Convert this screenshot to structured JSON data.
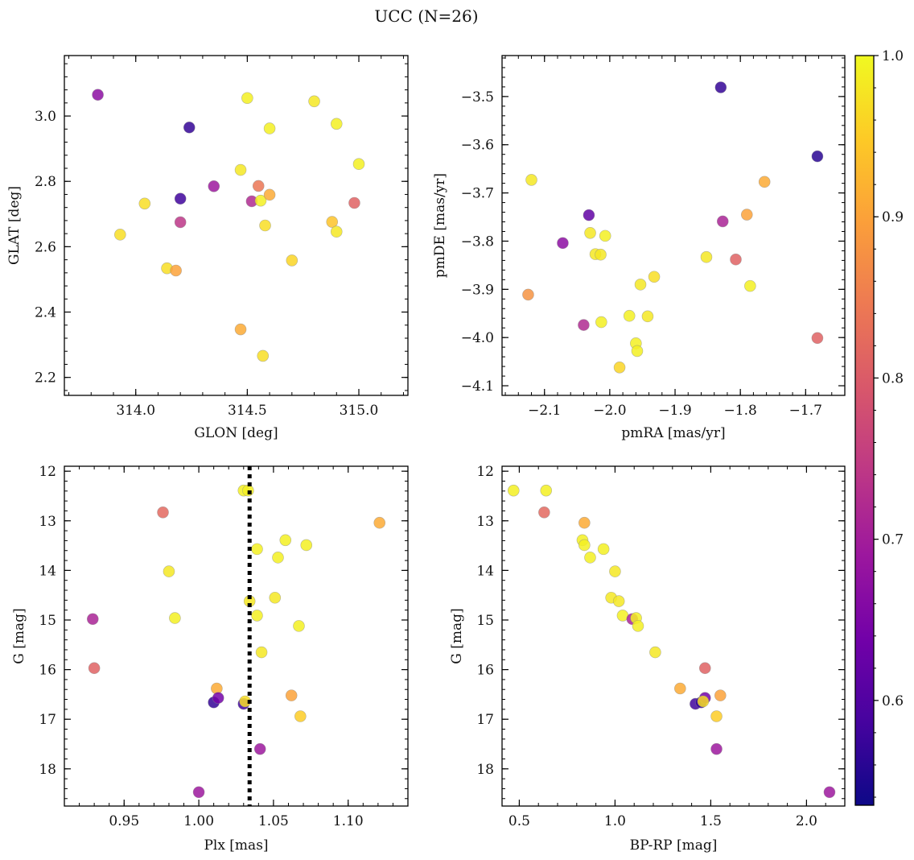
{
  "figure": {
    "title": "UCC (N=26)"
  },
  "chart_data": [
    {
      "type": "scatter",
      "xlabel": "GLON [deg]",
      "ylabel": "GLAT [deg]",
      "xlim": [
        313.68,
        315.22
      ],
      "ylim": [
        2.145,
        3.185
      ],
      "xticks": [
        {
          "value": 314.0,
          "label": "314.0"
        },
        {
          "value": 314.5,
          "label": "314.5"
        },
        {
          "value": 315.0,
          "label": "315.0"
        }
      ],
      "yticks": [
        {
          "value": 2.2,
          "label": "2.2"
        },
        {
          "value": 2.4,
          "label": "2.4"
        },
        {
          "value": 2.6,
          "label": "2.6"
        },
        {
          "value": 2.8,
          "label": "2.8"
        },
        {
          "value": 3.0,
          "label": "3.0"
        }
      ],
      "invert_y": false,
      "points": [
        {
          "x": 313.83,
          "y": 3.065,
          "p": 0.67
        },
        {
          "x": 313.93,
          "y": 2.637,
          "p": 0.97
        },
        {
          "x": 314.04,
          "y": 2.732,
          "p": 0.97
        },
        {
          "x": 314.14,
          "y": 2.534,
          "p": 0.97
        },
        {
          "x": 314.18,
          "y": 2.527,
          "p": 0.9
        },
        {
          "x": 314.2,
          "y": 2.747,
          "p": 0.58
        },
        {
          "x": 314.2,
          "y": 2.675,
          "p": 0.74
        },
        {
          "x": 314.24,
          "y": 2.965,
          "p": 0.57
        },
        {
          "x": 314.35,
          "y": 2.785,
          "p": 0.69
        },
        {
          "x": 314.47,
          "y": 2.835,
          "p": 0.98
        },
        {
          "x": 314.47,
          "y": 2.347,
          "p": 0.91
        },
        {
          "x": 314.5,
          "y": 3.055,
          "p": 0.99
        },
        {
          "x": 314.52,
          "y": 2.739,
          "p": 0.72
        },
        {
          "x": 314.55,
          "y": 2.786,
          "p": 0.84
        },
        {
          "x": 314.56,
          "y": 2.741,
          "p": 0.99
        },
        {
          "x": 314.57,
          "y": 2.266,
          "p": 0.97
        },
        {
          "x": 314.58,
          "y": 2.665,
          "p": 0.97
        },
        {
          "x": 314.6,
          "y": 2.759,
          "p": 0.91
        },
        {
          "x": 314.6,
          "y": 2.962,
          "p": 0.99
        },
        {
          "x": 314.7,
          "y": 2.558,
          "p": 0.96
        },
        {
          "x": 314.8,
          "y": 3.045,
          "p": 0.98
        },
        {
          "x": 314.88,
          "y": 2.676,
          "p": 0.94
        },
        {
          "x": 314.9,
          "y": 2.976,
          "p": 0.99
        },
        {
          "x": 314.9,
          "y": 2.646,
          "p": 0.98
        },
        {
          "x": 314.98,
          "y": 2.734,
          "p": 0.81
        },
        {
          "x": 315.0,
          "y": 2.853,
          "p": 0.99
        }
      ]
    },
    {
      "type": "scatter",
      "xlabel": "pmRA [mas/yr]",
      "ylabel": "pmDE [mas/yr]",
      "xlim": [
        -2.165,
        -1.64
      ],
      "ylim": [
        -4.12,
        -3.415
      ],
      "xticks": [
        {
          "value": -2.1,
          "label": "−2.1"
        },
        {
          "value": -2.0,
          "label": "−2.0"
        },
        {
          "value": -1.9,
          "label": "−1.9"
        },
        {
          "value": -1.8,
          "label": "−1.8"
        },
        {
          "value": -1.7,
          "label": "−1.7"
        }
      ],
      "yticks": [
        {
          "value": -4.1,
          "label": "−4.1"
        },
        {
          "value": -4.0,
          "label": "−4.0"
        },
        {
          "value": -3.9,
          "label": "−3.9"
        },
        {
          "value": -3.8,
          "label": "−3.8"
        },
        {
          "value": -3.7,
          "label": "−3.7"
        },
        {
          "value": -3.6,
          "label": "−3.6"
        },
        {
          "value": -3.5,
          "label": "−3.5"
        }
      ],
      "invert_y": false,
      "points": [
        {
          "x": -2.125,
          "y": -3.911,
          "p": 0.88
        },
        {
          "x": -2.12,
          "y": -3.673,
          "p": 0.98
        },
        {
          "x": -2.072,
          "y": -3.804,
          "p": 0.67
        },
        {
          "x": -2.04,
          "y": -3.974,
          "p": 0.72
        },
        {
          "x": -2.032,
          "y": -3.746,
          "p": 0.62
        },
        {
          "x": -2.03,
          "y": -3.783,
          "p": 0.98
        },
        {
          "x": -2.022,
          "y": -3.827,
          "p": 0.98
        },
        {
          "x": -2.014,
          "y": -3.828,
          "p": 0.98
        },
        {
          "x": -2.013,
          "y": -3.968,
          "p": 0.99
        },
        {
          "x": -2.007,
          "y": -3.789,
          "p": 0.99
        },
        {
          "x": -1.985,
          "y": -4.062,
          "p": 0.96
        },
        {
          "x": -1.97,
          "y": -3.955,
          "p": 0.99
        },
        {
          "x": -1.96,
          "y": -4.012,
          "p": 0.99
        },
        {
          "x": -1.958,
          "y": -4.028,
          "p": 0.99
        },
        {
          "x": -1.953,
          "y": -3.89,
          "p": 0.98
        },
        {
          "x": -1.942,
          "y": -3.956,
          "p": 0.98
        },
        {
          "x": -1.932,
          "y": -3.874,
          "p": 0.97
        },
        {
          "x": -1.852,
          "y": -3.833,
          "p": 0.98
        },
        {
          "x": -1.83,
          "y": -3.481,
          "p": 0.57
        },
        {
          "x": -1.827,
          "y": -3.759,
          "p": 0.71
        },
        {
          "x": -1.807,
          "y": -3.838,
          "p": 0.81
        },
        {
          "x": -1.79,
          "y": -3.745,
          "p": 0.9
        },
        {
          "x": -1.785,
          "y": -3.893,
          "p": 0.99
        },
        {
          "x": -1.763,
          "y": -3.677,
          "p": 0.91
        },
        {
          "x": -1.682,
          "y": -3.624,
          "p": 0.56
        },
        {
          "x": -1.682,
          "y": -4.001,
          "p": 0.81
        }
      ]
    },
    {
      "type": "scatter",
      "xlabel": "Plx [mas]",
      "ylabel": "G [mag]",
      "xlim": [
        0.91,
        1.14
      ],
      "ylim": [
        11.9,
        18.75
      ],
      "xticks": [
        {
          "value": 0.95,
          "label": "0.95"
        },
        {
          "value": 1.0,
          "label": "1.00"
        },
        {
          "value": 1.05,
          "label": "1.05"
        },
        {
          "value": 1.1,
          "label": "1.10"
        }
      ],
      "yticks": [
        {
          "value": 12,
          "label": "12"
        },
        {
          "value": 13,
          "label": "13"
        },
        {
          "value": 14,
          "label": "14"
        },
        {
          "value": 15,
          "label": "15"
        },
        {
          "value": 16,
          "label": "16"
        },
        {
          "value": 17,
          "label": "17"
        },
        {
          "value": 18,
          "label": "18"
        }
      ],
      "invert_y": true,
      "vline": {
        "x": 1.034,
        "style": "dotted"
      },
      "points": [
        {
          "x": 0.929,
          "y": 14.98,
          "p": 0.71
        },
        {
          "x": 0.93,
          "y": 15.97,
          "p": 0.81
        },
        {
          "x": 0.976,
          "y": 12.83,
          "p": 0.82
        },
        {
          "x": 0.98,
          "y": 14.02,
          "p": 0.98
        },
        {
          "x": 0.984,
          "y": 14.96,
          "p": 0.99
        },
        {
          "x": 1.0,
          "y": 18.47,
          "p": 0.69
        },
        {
          "x": 1.01,
          "y": 16.66,
          "p": 0.57
        },
        {
          "x": 1.012,
          "y": 16.38,
          "p": 0.91
        },
        {
          "x": 1.013,
          "y": 16.57,
          "p": 0.64
        },
        {
          "x": 1.03,
          "y": 12.39,
          "p": 0.99
        },
        {
          "x": 1.03,
          "y": 16.69,
          "p": 0.58
        },
        {
          "x": 1.031,
          "y": 16.64,
          "p": 0.97
        },
        {
          "x": 1.033,
          "y": 12.39,
          "p": 0.99
        },
        {
          "x": 1.034,
          "y": 14.62,
          "p": 0.98
        },
        {
          "x": 1.039,
          "y": 13.57,
          "p": 0.99
        },
        {
          "x": 1.039,
          "y": 14.91,
          "p": 0.99
        },
        {
          "x": 1.041,
          "y": 17.6,
          "p": 0.69
        },
        {
          "x": 1.042,
          "y": 15.65,
          "p": 0.98
        },
        {
          "x": 1.051,
          "y": 14.55,
          "p": 0.98
        },
        {
          "x": 1.053,
          "y": 13.74,
          "p": 0.99
        },
        {
          "x": 1.058,
          "y": 13.39,
          "p": 0.99
        },
        {
          "x": 1.062,
          "y": 16.52,
          "p": 0.9
        },
        {
          "x": 1.067,
          "y": 15.12,
          "p": 0.99
        },
        {
          "x": 1.068,
          "y": 16.94,
          "p": 0.95
        },
        {
          "x": 1.072,
          "y": 13.49,
          "p": 0.99
        },
        {
          "x": 1.121,
          "y": 13.04,
          "p": 0.91
        }
      ]
    },
    {
      "type": "scatter",
      "xlabel": "BP-RP [mag]",
      "ylabel": "G [mag]",
      "xlim": [
        0.41,
        2.2
      ],
      "ylim": [
        11.9,
        18.75
      ],
      "xticks": [
        {
          "value": 0.5,
          "label": "0.5"
        },
        {
          "value": 1.0,
          "label": "1.0"
        },
        {
          "value": 1.5,
          "label": "1.5"
        },
        {
          "value": 2.0,
          "label": "2.0"
        }
      ],
      "yticks": [
        {
          "value": 12,
          "label": "12"
        },
        {
          "value": 13,
          "label": "13"
        },
        {
          "value": 14,
          "label": "14"
        },
        {
          "value": 15,
          "label": "15"
        },
        {
          "value": 16,
          "label": "16"
        },
        {
          "value": 17,
          "label": "17"
        },
        {
          "value": 18,
          "label": "18"
        }
      ],
      "invert_y": true,
      "points": [
        {
          "x": 0.47,
          "y": 12.39,
          "p": 0.99
        },
        {
          "x": 0.63,
          "y": 12.83,
          "p": 0.82
        },
        {
          "x": 0.64,
          "y": 12.39,
          "p": 0.99
        },
        {
          "x": 0.84,
          "y": 13.04,
          "p": 0.91
        },
        {
          "x": 0.83,
          "y": 13.39,
          "p": 0.99
        },
        {
          "x": 0.84,
          "y": 13.49,
          "p": 0.99
        },
        {
          "x": 0.87,
          "y": 13.74,
          "p": 0.99
        },
        {
          "x": 0.94,
          "y": 13.57,
          "p": 0.99
        },
        {
          "x": 1.0,
          "y": 14.02,
          "p": 0.98
        },
        {
          "x": 0.98,
          "y": 14.55,
          "p": 0.98
        },
        {
          "x": 1.02,
          "y": 14.62,
          "p": 0.98
        },
        {
          "x": 1.04,
          "y": 14.91,
          "p": 0.99
        },
        {
          "x": 1.09,
          "y": 14.98,
          "p": 0.71
        },
        {
          "x": 1.11,
          "y": 14.96,
          "p": 0.99
        },
        {
          "x": 1.12,
          "y": 15.12,
          "p": 0.99
        },
        {
          "x": 1.21,
          "y": 15.65,
          "p": 0.98
        },
        {
          "x": 1.34,
          "y": 16.38,
          "p": 0.91
        },
        {
          "x": 1.42,
          "y": 16.69,
          "p": 0.58
        },
        {
          "x": 1.45,
          "y": 16.66,
          "p": 0.57
        },
        {
          "x": 1.47,
          "y": 16.57,
          "p": 0.64
        },
        {
          "x": 1.46,
          "y": 16.64,
          "p": 0.97
        },
        {
          "x": 1.47,
          "y": 15.97,
          "p": 0.81
        },
        {
          "x": 1.55,
          "y": 16.52,
          "p": 0.9
        },
        {
          "x": 1.53,
          "y": 16.94,
          "p": 0.95
        },
        {
          "x": 1.53,
          "y": 17.6,
          "p": 0.69
        },
        {
          "x": 2.12,
          "y": 18.47,
          "p": 0.69
        }
      ]
    }
  ],
  "colorbar": {
    "colormap": "plasma",
    "range": [
      0.535,
      1.0
    ],
    "ticks": [
      {
        "value": 0.6,
        "label": "0.6"
      },
      {
        "value": 0.7,
        "label": "0.7"
      },
      {
        "value": 0.8,
        "label": "0.8"
      },
      {
        "value": 0.9,
        "label": "0.9"
      },
      {
        "value": 1.0,
        "label": "1.0"
      }
    ]
  },
  "colors": {
    "plasma": [
      "#0d0887",
      "#46039f",
      "#7201a8",
      "#9c179e",
      "#bd3786",
      "#d8576b",
      "#ed7953",
      "#fb9f3a",
      "#fdca26",
      "#f0f921"
    ],
    "vline": "#000000",
    "frame": "#000000"
  }
}
